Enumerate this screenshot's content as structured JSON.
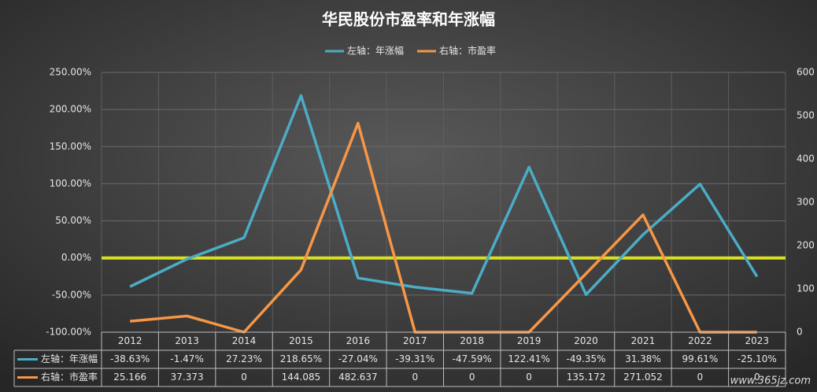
{
  "chart_data": {
    "type": "line",
    "title": "华民股份市盈率和年涨幅",
    "categories": [
      "2012",
      "2013",
      "2014",
      "2015",
      "2016",
      "2017",
      "2018",
      "2019",
      "2020",
      "2021",
      "2022",
      "2023"
    ],
    "series": [
      {
        "name": "左轴：年涨幅",
        "color": "#4bacc6",
        "axis": "y",
        "values": [
          -38.63,
          -1.47,
          27.23,
          218.65,
          -27.04,
          -39.31,
          -47.59,
          122.41,
          -49.35,
          31.38,
          99.61,
          -25.1
        ],
        "value_labels": [
          "-38.63%",
          "-1.47%",
          "27.23%",
          "218.65%",
          "-27.04%",
          "-39.31%",
          "-47.59%",
          "122.41%",
          "-49.35%",
          "31.38%",
          "99.61%",
          "-25.10%"
        ]
      },
      {
        "name": "右轴：市盈率",
        "color": "#f79646",
        "axis": "y2",
        "values": [
          25.166,
          37.373,
          0,
          144.085,
          482.637,
          0,
          0,
          0,
          135.172,
          271.052,
          0,
          0
        ]
      }
    ],
    "ylim": [
      -100,
      250
    ],
    "yticks": [
      {
        "value": -100,
        "label": "-100.00%"
      },
      {
        "value": -50,
        "label": "-50.00%"
      },
      {
        "value": 0,
        "label": "0.00%"
      },
      {
        "value": 50,
        "label": "50.00%"
      },
      {
        "value": 100,
        "label": "100.00%"
      },
      {
        "value": 150,
        "label": "150.00%"
      },
      {
        "value": 200,
        "label": "200.00%"
      },
      {
        "value": 250,
        "label": "250.00%"
      }
    ],
    "y2lim": [
      0,
      600
    ],
    "y2ticks": [
      0,
      100,
      200,
      300,
      400,
      500,
      600
    ],
    "grid": true,
    "legend": "top",
    "zero_line_color": "#d9e021",
    "data_table": true,
    "watermark": "www.365jz.com"
  }
}
